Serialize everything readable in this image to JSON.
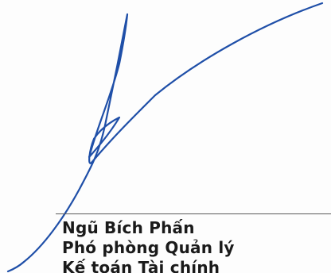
{
  "signature": {
    "ink_color": "#1f4fa8"
  },
  "signer": {
    "name": "Ngũ Bích Phấn",
    "title": "Phó phòng Quản lý",
    "department": "Kế toán Tài chính"
  }
}
